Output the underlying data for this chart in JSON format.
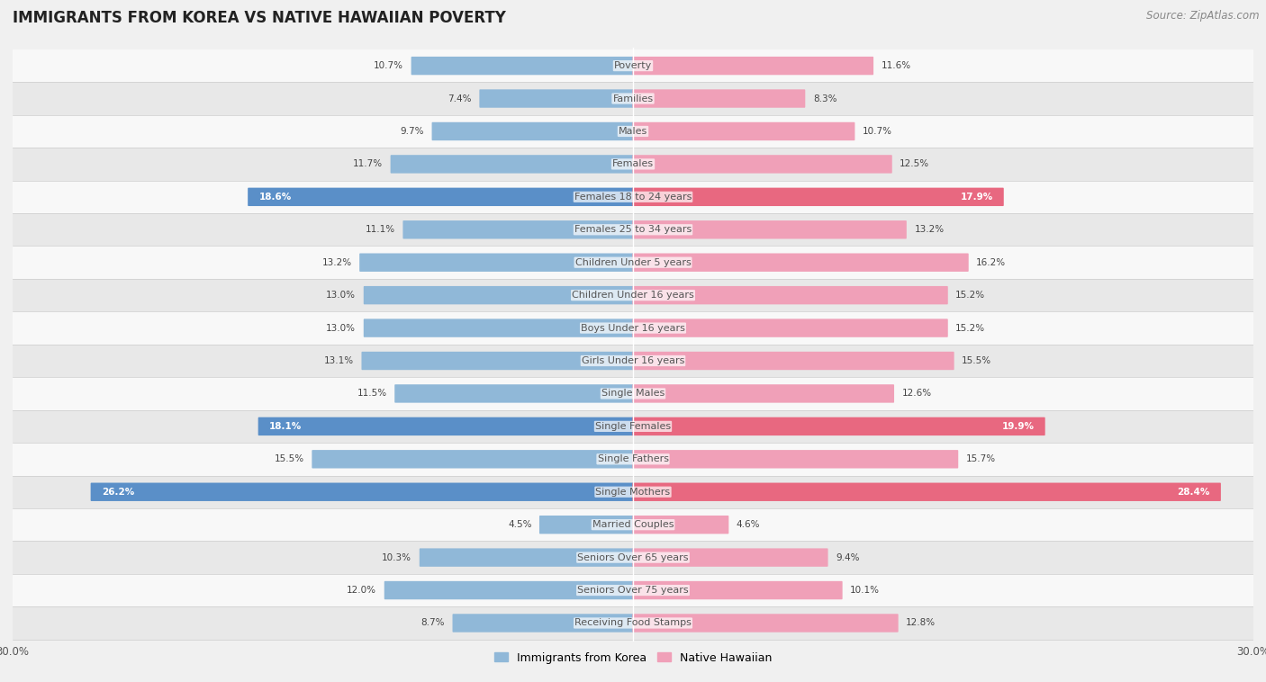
{
  "title": "IMMIGRANTS FROM KOREA VS NATIVE HAWAIIAN POVERTY",
  "source": "Source: ZipAtlas.com",
  "categories": [
    "Poverty",
    "Families",
    "Males",
    "Females",
    "Females 18 to 24 years",
    "Females 25 to 34 years",
    "Children Under 5 years",
    "Children Under 16 years",
    "Boys Under 16 years",
    "Girls Under 16 years",
    "Single Males",
    "Single Females",
    "Single Fathers",
    "Single Mothers",
    "Married Couples",
    "Seniors Over 65 years",
    "Seniors Over 75 years",
    "Receiving Food Stamps"
  ],
  "korea_values": [
    10.7,
    7.4,
    9.7,
    11.7,
    18.6,
    11.1,
    13.2,
    13.0,
    13.0,
    13.1,
    11.5,
    18.1,
    15.5,
    26.2,
    4.5,
    10.3,
    12.0,
    8.7
  ],
  "hawaiian_values": [
    11.6,
    8.3,
    10.7,
    12.5,
    17.9,
    13.2,
    16.2,
    15.2,
    15.2,
    15.5,
    12.6,
    19.9,
    15.7,
    28.4,
    4.6,
    9.4,
    10.1,
    12.8
  ],
  "korea_color": "#90b8d8",
  "hawaii_color": "#f0a0b8",
  "korea_highlight_color": "#5a8fc8",
  "hawaii_highlight_color": "#e86880",
  "highlight_rows": [
    4,
    11,
    13
  ],
  "bar_height": 0.5,
  "xlim": 30,
  "background_color": "#f0f0f0",
  "row_bg_even": "#f8f8f8",
  "row_bg_odd": "#e8e8e8",
  "legend_korea": "Immigrants from Korea",
  "legend_hawaii": "Native Hawaiian",
  "title_fontsize": 12,
  "source_fontsize": 8.5,
  "label_fontsize": 8,
  "value_fontsize": 7.5
}
